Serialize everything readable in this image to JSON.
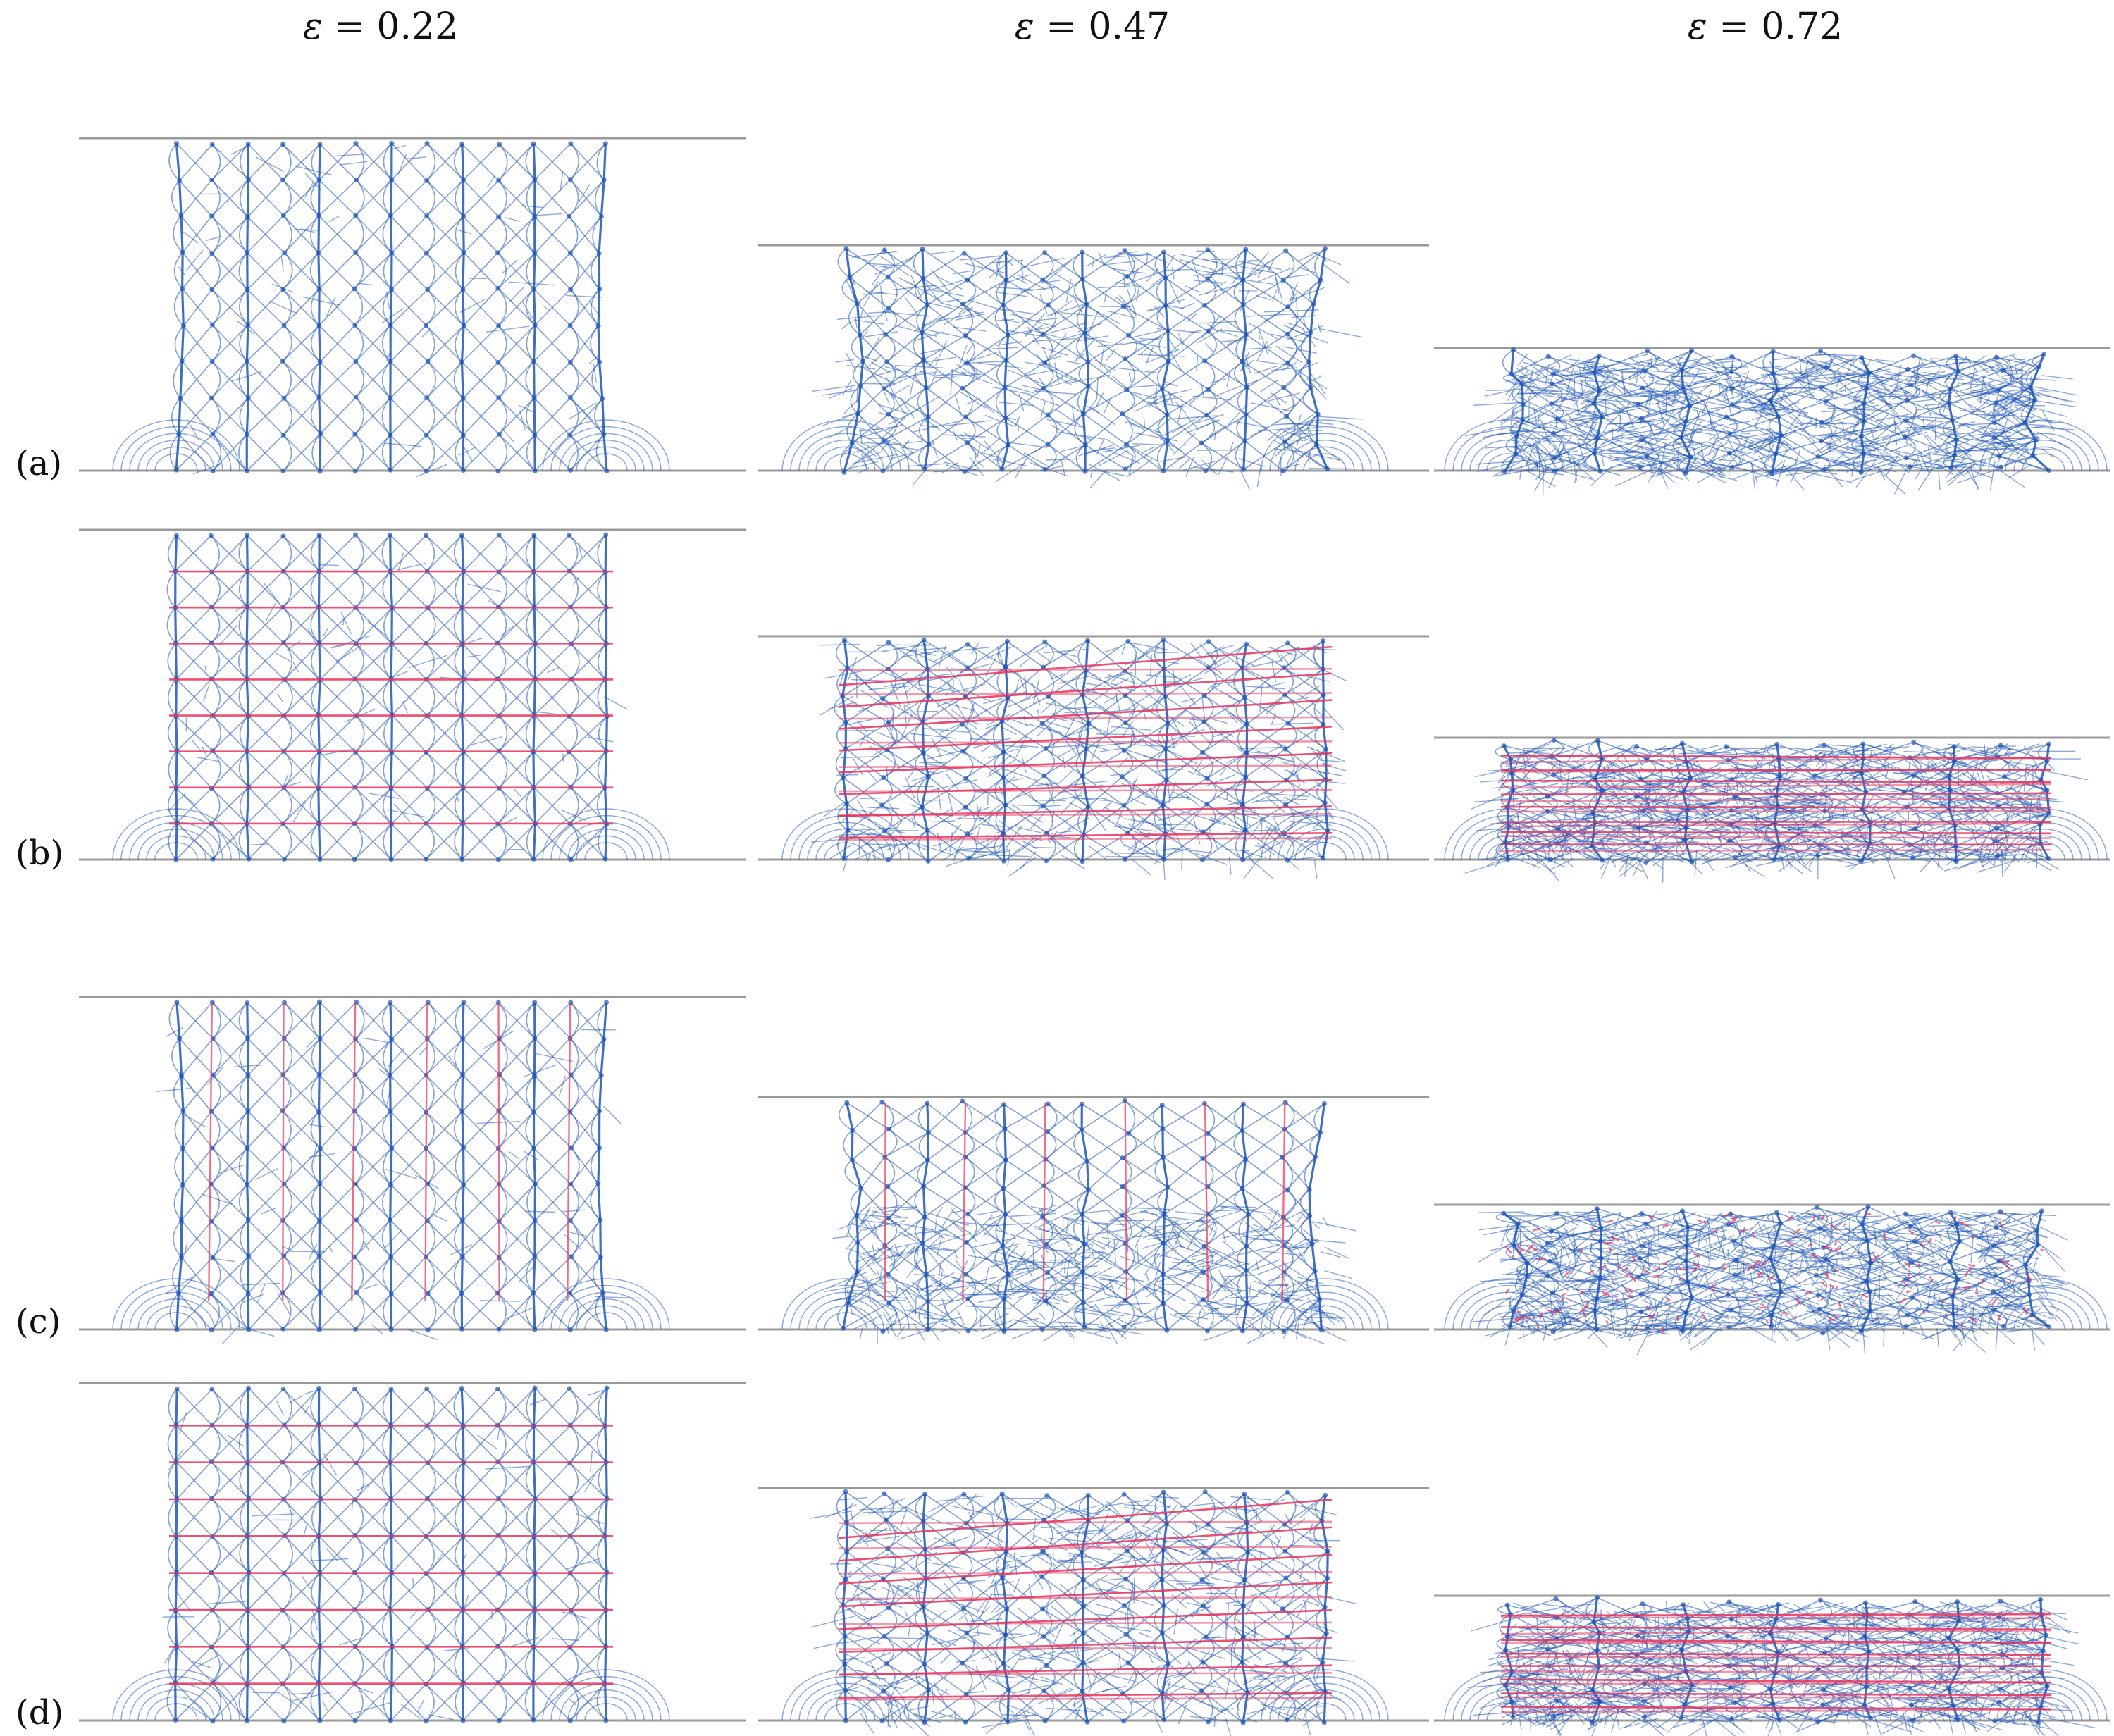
{
  "columns": [
    {
      "symbol": "ε",
      "rest": " = 0.22"
    },
    {
      "symbol": "ε",
      "rest": " = 0.47"
    },
    {
      "symbol": "ε",
      "rest": " = 0.72"
    }
  ],
  "rows": [
    {
      "label": "(a)",
      "red_mode": "none"
    },
    {
      "label": "(b)",
      "red_mode": "horizontal"
    },
    {
      "label": "(c)",
      "red_mode": "vertical"
    },
    {
      "label": "(d)",
      "red_mode": "horizontal"
    }
  ],
  "colors": {
    "lattice_blue": "#1f56b5",
    "reinforcement_red": "#e8325a",
    "plate_gray": "#9a9a9a"
  }
}
